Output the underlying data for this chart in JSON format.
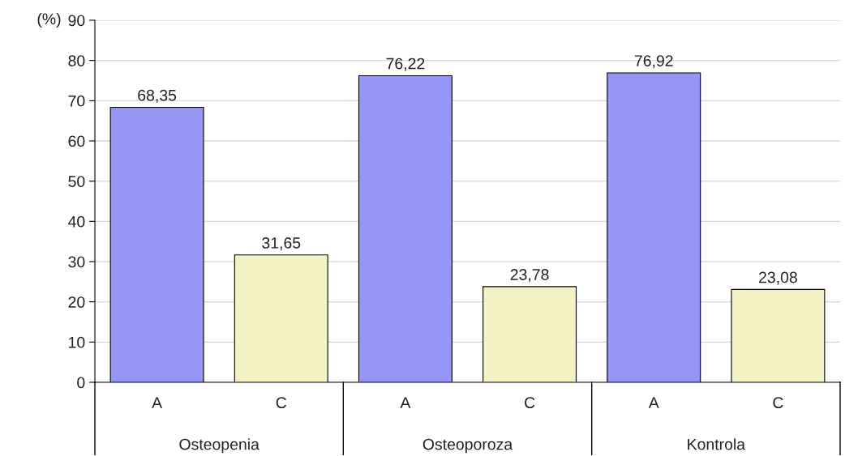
{
  "chart_data": {
    "type": "bar",
    "ylabel": "(%)",
    "categories": [
      "Osteopenia",
      "Osteoporoza",
      "Kontrola"
    ],
    "series": [
      {
        "name": "A",
        "color": "#9595f5",
        "values": [
          68.35,
          76.22,
          76.92
        ],
        "value_labels": [
          "68,35",
          "76,22",
          "76,92"
        ]
      },
      {
        "name": "C",
        "color": "#f2f2c4",
        "values": [
          31.65,
          23.78,
          23.08
        ],
        "value_labels": [
          "31,65",
          "23,78",
          "23,08"
        ]
      }
    ],
    "ylim": [
      0,
      90
    ],
    "yticks": [
      0,
      10,
      20,
      30,
      40,
      50,
      60,
      70,
      80,
      90
    ],
    "grid": "y"
  }
}
